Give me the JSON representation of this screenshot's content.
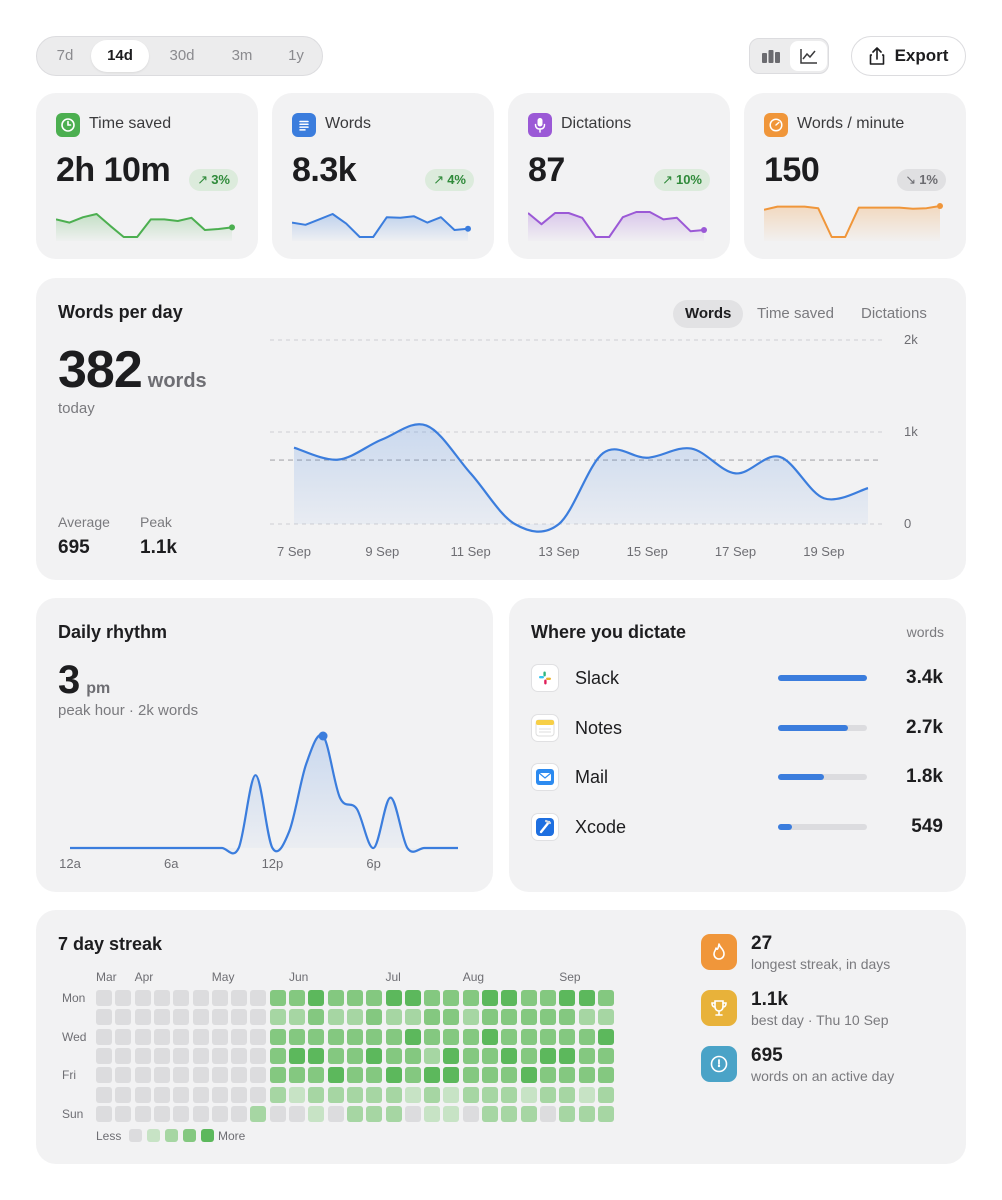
{
  "range": {
    "options": [
      "7d",
      "14d",
      "30d",
      "3m",
      "1y"
    ],
    "selected": "14d"
  },
  "view_toggle": {
    "options": [
      {
        "name": "bar-chart-icon",
        "active": false
      },
      {
        "name": "line-chart-icon",
        "active": true
      }
    ]
  },
  "export": {
    "label": "Export",
    "icon": "share-icon"
  },
  "stats": [
    {
      "label": "Time saved",
      "value": "2h 10m",
      "change": "3%",
      "direction": "up",
      "color": "#4caf50",
      "icon": "clock-icon",
      "series": [
        0.55,
        0.45,
        0.62,
        0.72,
        0.35,
        0.0,
        0.0,
        0.55,
        0.55,
        0.5,
        0.6,
        0.22,
        0.25,
        0.3
      ]
    },
    {
      "label": "Words",
      "value": "8.3k",
      "change": "4%",
      "direction": "up",
      "color": "#3b7ddd",
      "icon": "document-icon",
      "series": [
        0.45,
        0.38,
        0.55,
        0.72,
        0.42,
        0.0,
        0.0,
        0.62,
        0.6,
        0.65,
        0.45,
        0.62,
        0.22,
        0.26
      ]
    },
    {
      "label": "Dictations",
      "value": "87",
      "change": "10%",
      "direction": "up",
      "color": "#9b59d6",
      "icon": "microphone-icon",
      "series": [
        0.75,
        0.4,
        0.75,
        0.75,
        0.6,
        0.0,
        0.0,
        0.62,
        0.78,
        0.78,
        0.55,
        0.6,
        0.18,
        0.22
      ]
    },
    {
      "label": "Words / minute",
      "value": "150",
      "change": "1%",
      "direction": "down",
      "color": "#f0963a",
      "icon": "gauge-icon",
      "series": [
        0.85,
        0.95,
        0.95,
        0.95,
        0.9,
        0.0,
        0.0,
        0.92,
        0.92,
        0.92,
        0.92,
        0.88,
        0.9,
        0.97
      ]
    }
  ],
  "words_per_day": {
    "title": "Words per day",
    "big_value": "382",
    "unit": "words",
    "subtitle": "today",
    "average_label": "Average",
    "average_value": "695",
    "peak_label": "Peak",
    "peak_value": "1.1k",
    "tabs": [
      "Words",
      "Time saved",
      "Dictations"
    ],
    "active_tab": "Words"
  },
  "daily_rhythm": {
    "title": "Daily rhythm",
    "big_value": "3",
    "unit": "pm",
    "subtitle": "peak hour · 2k words"
  },
  "where": {
    "title": "Where you dictate",
    "unit_label": "words",
    "apps": [
      {
        "name": "Slack",
        "value": "3.4k",
        "fraction": 1.0,
        "icon": "slack-icon"
      },
      {
        "name": "Notes",
        "value": "2.7k",
        "fraction": 0.79,
        "icon": "notes-icon"
      },
      {
        "name": "Mail",
        "value": "1.8k",
        "fraction": 0.52,
        "icon": "mail-icon"
      },
      {
        "name": "Xcode",
        "value": "549",
        "fraction": 0.16,
        "icon": "xcode-icon"
      }
    ]
  },
  "streak": {
    "title": "7 day streak",
    "months": [
      "Mar",
      "Apr",
      "May",
      "Jun",
      "Jul",
      "Aug",
      "Sep"
    ],
    "days": [
      "Mon",
      "Wed",
      "Fri",
      "Sun"
    ],
    "legend_less": "Less",
    "legend_more": "More",
    "colors": [
      "#dcdcde",
      "#c7e3c5",
      "#a6d6a3",
      "#84c880",
      "#5cb85c"
    ],
    "grid": [
      [
        0,
        0,
        0,
        0,
        0,
        0,
        0,
        0,
        0,
        3,
        3,
        4,
        3,
        3,
        3,
        4,
        4,
        3,
        3,
        3,
        4,
        4,
        3,
        3,
        4,
        4,
        3
      ],
      [
        0,
        0,
        0,
        0,
        0,
        0,
        0,
        0,
        0,
        2,
        2,
        3,
        2,
        2,
        3,
        2,
        2,
        3,
        3,
        2,
        3,
        3,
        3,
        3,
        3,
        2,
        2
      ],
      [
        0,
        0,
        0,
        0,
        0,
        0,
        0,
        0,
        0,
        3,
        3,
        3,
        3,
        3,
        3,
        3,
        4,
        3,
        3,
        3,
        4,
        3,
        3,
        3,
        3,
        3,
        4
      ],
      [
        0,
        0,
        0,
        0,
        0,
        0,
        0,
        0,
        0,
        3,
        4,
        4,
        3,
        3,
        4,
        3,
        3,
        2,
        4,
        3,
        3,
        4,
        3,
        4,
        4,
        3,
        3
      ],
      [
        0,
        0,
        0,
        0,
        0,
        0,
        0,
        0,
        0,
        3,
        3,
        3,
        4,
        3,
        3,
        4,
        3,
        4,
        4,
        3,
        3,
        3,
        4,
        3,
        3,
        3,
        3
      ],
      [
        0,
        0,
        0,
        0,
        0,
        0,
        0,
        0,
        0,
        2,
        1,
        2,
        2,
        2,
        2,
        2,
        1,
        2,
        1,
        2,
        2,
        2,
        1,
        2,
        2,
        1,
        2
      ],
      [
        0,
        0,
        0,
        0,
        0,
        0,
        0,
        0,
        2,
        0,
        0,
        1,
        0,
        2,
        2,
        2,
        0,
        1,
        1,
        0,
        2,
        2,
        2,
        0,
        2,
        2,
        2
      ]
    ],
    "achievements": [
      {
        "value": "27",
        "desc": "longest streak, in days",
        "color": "#f0963a",
        "icon": "flame-icon"
      },
      {
        "value": "1.1k",
        "desc": "best day · Thu 10 Sep",
        "color": "#e8b23a",
        "icon": "trophy-icon"
      },
      {
        "value": "695",
        "desc": "words on an active day",
        "color": "#4aa3c7",
        "icon": "speedometer-icon"
      }
    ]
  },
  "chart_data": [
    {
      "type": "area",
      "x": [
        "7 Sep",
        "8 Sep",
        "9 Sep",
        "10 Sep",
        "11 Sep",
        "12 Sep",
        "13 Sep",
        "14 Sep",
        "15 Sep",
        "16 Sep",
        "17 Sep",
        "18 Sep",
        "19 Sep",
        "20 Sep"
      ],
      "xticks": [
        "7 Sep",
        "9 Sep",
        "11 Sep",
        "13 Sep",
        "15 Sep",
        "17 Sep",
        "19 Sep"
      ],
      "series": [
        {
          "values": [
            830,
            700,
            920,
            1070,
            550,
            0,
            0,
            770,
            720,
            820,
            550,
            730,
            280,
            390
          ]
        }
      ],
      "average": 695,
      "ylim": [
        0,
        2000
      ],
      "yticks": [
        "2k",
        "1k",
        "0"
      ],
      "color": "#3b7ddd"
    },
    {
      "type": "area",
      "x": [
        "12a",
        "1a",
        "2a",
        "3a",
        "4a",
        "5a",
        "6a",
        "7a",
        "8a",
        "9a",
        "10a",
        "11a",
        "12p",
        "1p",
        "2p",
        "3p",
        "4p",
        "5p",
        "6p",
        "7p",
        "8p",
        "9p",
        "10p",
        "11p"
      ],
      "xticks": [
        "12a",
        "6a",
        "12p",
        "6p"
      ],
      "series": [
        {
          "values": [
            0,
            0,
            0,
            0,
            0,
            0,
            0,
            0,
            0,
            0,
            0,
            1300,
            0,
            300,
            1500,
            2000,
            900,
            700,
            0,
            900,
            0,
            0,
            0,
            0
          ]
        }
      ],
      "ylim": [
        0,
        2000
      ],
      "color": "#3b7ddd"
    }
  ]
}
